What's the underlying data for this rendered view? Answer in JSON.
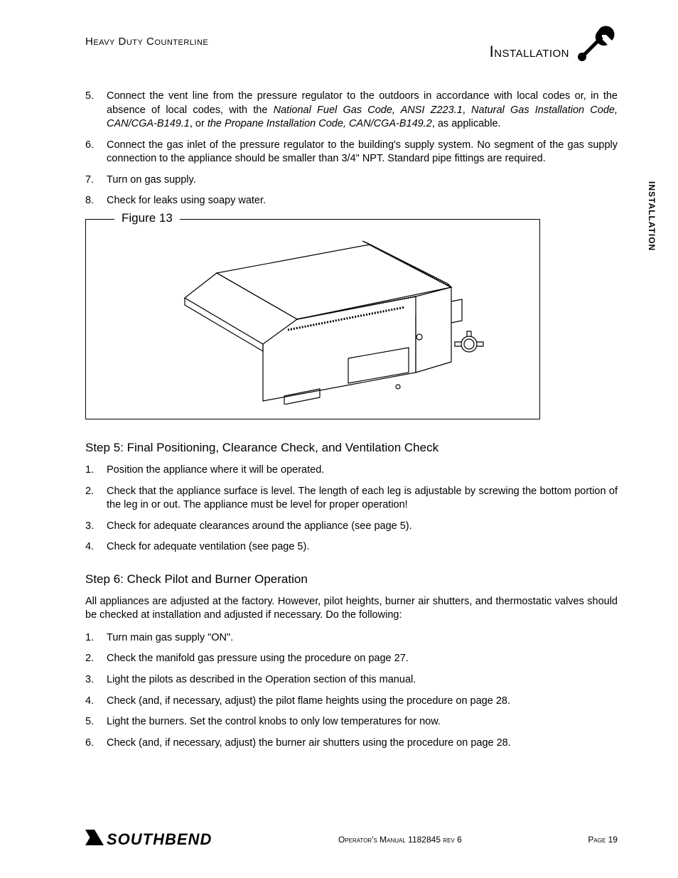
{
  "header": {
    "left": "Heavy Duty Counterline",
    "right": "Installation"
  },
  "side_tab": "INSTALLATION",
  "list_a": [
    {
      "num": "5.",
      "html": "Connect the vent line from the pressure regulator to the outdoors in accordance with local codes or, in the absence of local codes, with the <span class='italic'>National Fuel Gas Code, ANSI Z223.1</span>, <span class='italic'>Natural Gas Installation Code, CAN/CGA-B149.1</span>, or <span class='italic'>the Propane Installation Code, CAN/CGA-B149.2</span>, as applicable."
    },
    {
      "num": "6.",
      "text": "Connect the gas inlet of the pressure regulator to the building's supply system. No segment of the gas supply connection to the appliance should be smaller than 3/4\" NPT. Standard pipe fittings are required."
    },
    {
      "num": "7.",
      "text": "Turn on gas supply."
    },
    {
      "num": "8.",
      "text": "Check for leaks using soapy water."
    }
  ],
  "figure": {
    "label": "Figure 13"
  },
  "step5": {
    "heading": "Step 5: Final Positioning, Clearance Check, and Ventilation Check",
    "items": [
      {
        "num": "1.",
        "text": "Position the appliance where it will be operated."
      },
      {
        "num": "2.",
        "text": "Check that the appliance surface is level. The length of each leg is adjustable by screwing the bottom portion of the leg in or out. The appliance must be level for proper operation!"
      },
      {
        "num": "3.",
        "text": "Check for adequate clearances around the appliance (see page 5)."
      },
      {
        "num": "4.",
        "text": "Check for adequate ventilation (see page 5)."
      }
    ]
  },
  "step6": {
    "heading": "Step 6: Check Pilot and Burner Operation",
    "para": "All appliances are adjusted at the factory. However, pilot heights, burner air shutters, and thermostatic valves should be checked at installation and adjusted if necessary. Do the following:",
    "items": [
      {
        "num": "1.",
        "text": "Turn main gas supply \"ON\"."
      },
      {
        "num": "2.",
        "text": "Check the manifold gas pressure using the procedure on page 27."
      },
      {
        "num": "3.",
        "text": "Light the pilots as described in the Operation section of this manual."
      },
      {
        "num": "4.",
        "text": "Check (and, if necessary, adjust) the pilot flame heights using the procedure on page 28."
      },
      {
        "num": "5.",
        "text": "Light the burners. Set the control knobs to only low temperatures for now."
      },
      {
        "num": "6.",
        "text": "Check (and, if necessary, adjust) the burner air shutters using the procedure on page 28."
      }
    ]
  },
  "footer": {
    "logo": "SOUTHBEND",
    "center": "Operator's Manual 1182845 rev 6",
    "right": "Page 19"
  }
}
